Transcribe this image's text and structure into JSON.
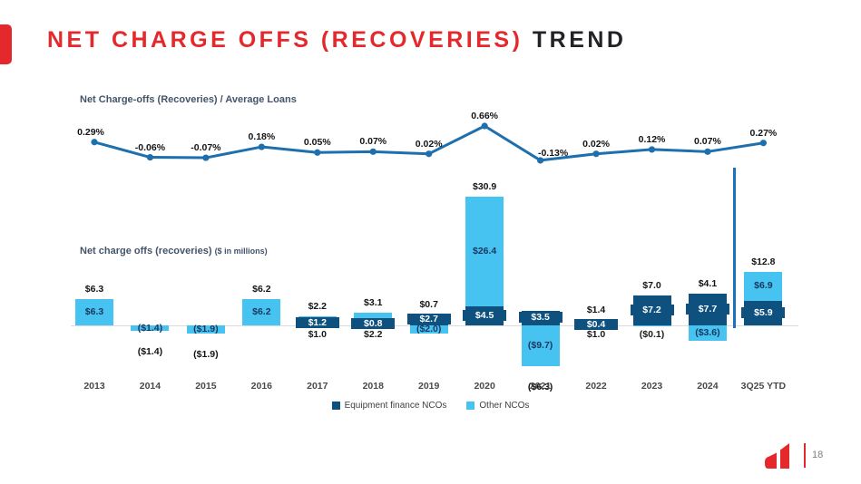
{
  "slide": {
    "title_red": "NET CHARGE OFFS (RECOVERIES) ",
    "title_dark": "TREND",
    "page_number": "18"
  },
  "colors": {
    "accent_red": "#E5282C",
    "equip_dark_blue": "#0E517F",
    "other_light_blue": "#47C3F2",
    "line_blue": "#1E6FAE",
    "divider_blue": "#1B74BB",
    "navy_text": "#17375E",
    "subtitle_slate": "#44546A"
  },
  "line_chart": {
    "subtitle": "Net Charge-offs (Recoveries) / Average Loans"
  },
  "bar_chart": {
    "subtitle": "Net charge offs (recoveries)",
    "subtitle_note": "($ in millions)"
  },
  "legend": [
    {
      "label": "Equipment finance NCOs",
      "color": "#0E517F"
    },
    {
      "label": "Other NCOs",
      "color": "#47C3F2"
    }
  ],
  "chart_data": [
    {
      "type": "line",
      "title": "Net Charge-offs (Recoveries) / Average Loans",
      "categories": [
        "2013",
        "2014",
        "2015",
        "2016",
        "2017",
        "2018",
        "2019",
        "2020",
        "2021",
        "2022",
        "2023",
        "2024",
        "3Q25 YTD"
      ],
      "values_pct": [
        0.29,
        -0.06,
        -0.07,
        0.18,
        0.05,
        0.07,
        0.02,
        0.66,
        -0.13,
        0.02,
        0.12,
        0.07,
        0.27
      ],
      "labels": [
        "0.29%",
        "-0.06%",
        "-0.07%",
        "0.18%",
        "0.05%",
        "0.07%",
        "0.02%",
        "0.66%",
        "-0.13%",
        "0.02%",
        "0.12%",
        "0.07%",
        "0.27%"
      ],
      "ylim_pct": [
        -0.2,
        0.75
      ],
      "grid": false,
      "legend_position": "none"
    },
    {
      "type": "bar",
      "stacked": true,
      "title": "Net charge offs (recoveries) ($ in millions)",
      "categories": [
        "2013",
        "2014",
        "2015",
        "2016",
        "2017",
        "2018",
        "2019",
        "2020",
        "2021",
        "2022",
        "2023",
        "2024",
        "3Q25 YTD"
      ],
      "series": [
        {
          "name": "Equipment finance NCOs",
          "color": "#0E517F",
          "values": [
            0,
            0,
            0,
            0,
            1.2,
            0.8,
            2.7,
            4.5,
            3.5,
            0.4,
            7.2,
            7.7,
            5.9
          ],
          "labels": [
            "",
            "",
            "",
            "",
            "$1.2",
            "$0.8",
            "$2.7",
            "$4.5",
            "$3.5",
            "$0.4",
            "$7.2",
            "$7.7",
            "$5.9"
          ]
        },
        {
          "name": "Other NCOs",
          "color": "#47C3F2",
          "values": [
            6.3,
            -1.4,
            -1.9,
            6.2,
            1.0,
            2.2,
            -2.0,
            26.4,
            -9.7,
            1.0,
            -0.1,
            -3.6,
            6.9
          ],
          "labels": [
            "$6.3",
            "($1.4)",
            "($1.9)",
            "$6.2",
            "$1.0",
            "$2.2",
            "($2.0)",
            "$26.4",
            "($9.7)",
            "$1.0",
            "($0.1)",
            "($3.6)",
            "$6.9"
          ],
          "label_pos": [
            "inside",
            "inside",
            "inside",
            "inside",
            "below",
            "below",
            "inside",
            "inside",
            "inside",
            "below",
            "below",
            "inside",
            "inside"
          ]
        }
      ],
      "totals": [
        6.3,
        -1.4,
        -1.9,
        6.2,
        2.2,
        3.1,
        0.7,
        30.9,
        -6.3,
        1.4,
        7.0,
        4.1,
        12.8
      ],
      "total_labels": [
        "$6.3",
        "($1.4)",
        "($1.9)",
        "$6.2",
        "$2.2",
        "$3.1",
        "$0.7",
        "$30.9",
        "($6.3)",
        "$1.4",
        "$7.0",
        "$4.1",
        "$12.8"
      ],
      "ylim": [
        -12,
        32
      ],
      "grid": false,
      "legend_position": "bottom",
      "ytd_divider_before_last_category": true
    }
  ]
}
